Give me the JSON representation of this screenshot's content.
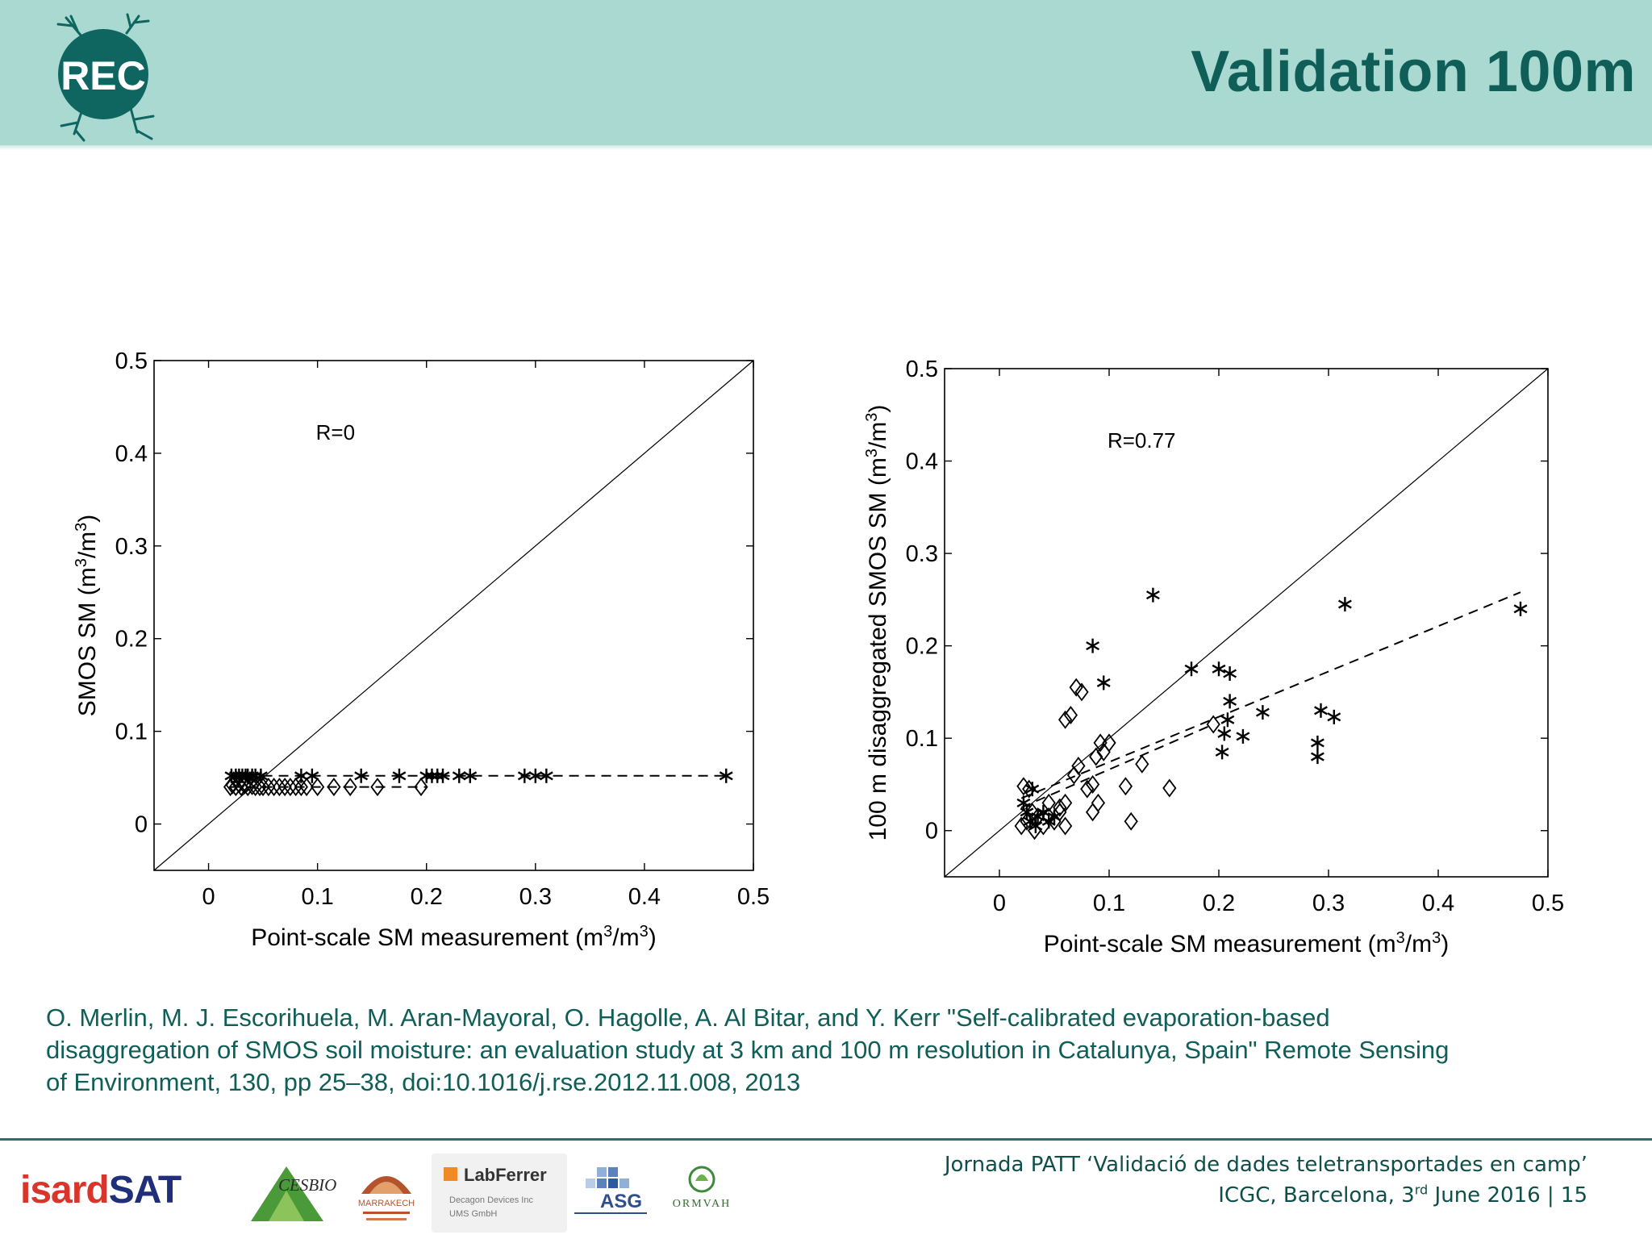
{
  "header": {
    "title": "Validation 100m",
    "logo_text": "REC",
    "colors": {
      "band": "#a9d9d1",
      "title": "#0f5f58",
      "logo": "#0f6660"
    }
  },
  "chart_data": [
    {
      "type": "scatter",
      "annotation": "R=0",
      "xlabel": "Point-scale SM measurement (m3/m3)",
      "ylabel": "SMOS SM (m3/m3)",
      "xlim": [
        -0.05,
        0.5
      ],
      "ylim": [
        -0.05,
        0.5
      ],
      "xticks": [
        "0",
        "0.1",
        "0.2",
        "0.3",
        "0.4",
        "0.5"
      ],
      "yticks": [
        "0",
        "0.1",
        "0.2",
        "0.3",
        "0.4",
        "0.5"
      ],
      "xtick_values": [
        0,
        0.1,
        0.2,
        0.3,
        0.4,
        0.5
      ],
      "ytick_values": [
        0,
        0.1,
        0.2,
        0.3,
        0.4,
        0.5
      ],
      "one_to_one_line": true,
      "series": [
        {
          "name": "asterisks",
          "marker": "asterisk",
          "x": [
            0.021,
            0.025,
            0.028,
            0.031,
            0.034,
            0.036,
            0.04,
            0.043,
            0.048,
            0.085,
            0.095,
            0.14,
            0.175,
            0.2,
            0.205,
            0.21,
            0.215,
            0.23,
            0.24,
            0.29,
            0.3,
            0.31,
            0.475
          ],
          "y": [
            0.052,
            0.052,
            0.052,
            0.052,
            0.052,
            0.052,
            0.052,
            0.052,
            0.052,
            0.052,
            0.052,
            0.052,
            0.052,
            0.052,
            0.052,
            0.052,
            0.052,
            0.052,
            0.052,
            0.052,
            0.052,
            0.052,
            0.052
          ],
          "fit": {
            "x": [
              0.02,
              0.475
            ],
            "y": [
              0.052,
              0.052
            ]
          }
        },
        {
          "name": "diamonds",
          "marker": "diamond",
          "x": [
            0.02,
            0.022,
            0.025,
            0.028,
            0.03,
            0.033,
            0.036,
            0.04,
            0.043,
            0.047,
            0.05,
            0.055,
            0.06,
            0.065,
            0.07,
            0.075,
            0.08,
            0.085,
            0.09,
            0.1,
            0.115,
            0.13,
            0.155,
            0.195
          ],
          "y": [
            0.04,
            0.042,
            0.04,
            0.043,
            0.04,
            0.042,
            0.04,
            0.041,
            0.04,
            0.04,
            0.04,
            0.04,
            0.04,
            0.04,
            0.04,
            0.04,
            0.04,
            0.04,
            0.04,
            0.04,
            0.04,
            0.04,
            0.04,
            0.04
          ],
          "fit": {
            "x": [
              0.02,
              0.2
            ],
            "y": [
              0.04,
              0.04
            ]
          }
        }
      ]
    },
    {
      "type": "scatter",
      "annotation": "R=0.77",
      "xlabel": "Point-scale SM measurement (m3/m3)",
      "ylabel": "100 m disaggregated SMOS SM (m3/m3)",
      "xlim": [
        -0.05,
        0.5
      ],
      "ylim": [
        -0.05,
        0.5
      ],
      "xticks": [
        "0",
        "0.1",
        "0.2",
        "0.3",
        "0.4",
        "0.5"
      ],
      "yticks": [
        "0",
        "0.1",
        "0.2",
        "0.3",
        "0.4",
        "0.5"
      ],
      "xtick_values": [
        0,
        0.1,
        0.2,
        0.3,
        0.4,
        0.5
      ],
      "ytick_values": [
        0,
        0.1,
        0.2,
        0.3,
        0.4,
        0.5
      ],
      "one_to_one_line": true,
      "series": [
        {
          "name": "asterisks",
          "marker": "asterisk",
          "x": [
            0.022,
            0.025,
            0.028,
            0.03,
            0.033,
            0.035,
            0.04,
            0.045,
            0.05,
            0.085,
            0.095,
            0.14,
            0.175,
            0.2,
            0.203,
            0.205,
            0.208,
            0.21,
            0.21,
            0.222,
            0.24,
            0.29,
            0.29,
            0.293,
            0.305,
            0.315,
            0.475
          ],
          "y": [
            0.03,
            0.02,
            0.01,
            0.045,
            0.005,
            0.015,
            0.02,
            0.01,
            0.015,
            0.2,
            0.16,
            0.255,
            0.175,
            0.175,
            0.085,
            0.105,
            0.12,
            0.17,
            0.14,
            0.102,
            0.128,
            0.08,
            0.095,
            0.13,
            0.123,
            0.245,
            0.24
          ],
          "fit": {
            "x": [
              0.02,
              0.475
            ],
            "y": [
              0.035,
              0.258
            ]
          }
        },
        {
          "name": "diamonds",
          "marker": "diamond",
          "x": [
            0.02,
            0.022,
            0.025,
            0.027,
            0.03,
            0.032,
            0.035,
            0.04,
            0.045,
            0.05,
            0.055,
            0.06,
            0.06,
            0.065,
            0.07,
            0.075,
            0.08,
            0.085,
            0.088,
            0.092,
            0.095,
            0.1,
            0.115,
            0.12,
            0.13,
            0.155,
            0.195,
            0.045,
            0.055,
            0.06,
            0.068,
            0.072,
            0.085,
            0.09
          ],
          "y": [
            0.005,
            0.048,
            0.01,
            0.045,
            0.02,
            0.0,
            0.015,
            0.005,
            0.015,
            0.01,
            0.02,
            0.005,
            0.12,
            0.125,
            0.155,
            0.15,
            0.045,
            0.05,
            0.08,
            0.095,
            0.085,
            0.095,
            0.048,
            0.01,
            0.072,
            0.046,
            0.115,
            0.03,
            0.025,
            0.03,
            0.06,
            0.07,
            0.02,
            0.03
          ],
          "fit": {
            "x": [
              0.02,
              0.195
            ],
            "y": [
              0.025,
              0.115
            ]
          }
        }
      ]
    }
  ],
  "citation": {
    "lines": [
      "O. Merlin, M. J. Escorihuela, M. Aran-Mayoral, O. Hagolle, A. Al Bitar, and Y. Kerr \"Self-calibrated evaporation-based",
      "disaggregation of SMOS soil moisture: an evaluation study at 3 km and 100 m resolution in Catalunya, Spain\" Remote Sensing",
      "of Environment, 130, pp 25–38, doi:10.1016/j.rse.2012.11.008, 2013"
    ]
  },
  "footer": {
    "line1": "Jornada PATT ‘Validació de dades teletransportades en camp’",
    "line2_pre": "ICGC, Barcelona, 3",
    "line2_sup": "rd",
    "line2_post": " June 2016 | 15",
    "logos": {
      "isard_a": "isard",
      "isard_b": "SAT",
      "cesbio": "CESBIO",
      "marrakech": "MARRAKECH",
      "labferrer": "LabFerrer",
      "labferrer_sub1": "Decagon Devices Inc",
      "labferrer_sub2": "UMS GmbH",
      "asg": "ASG",
      "ormvah": "ORMVAH"
    }
  }
}
